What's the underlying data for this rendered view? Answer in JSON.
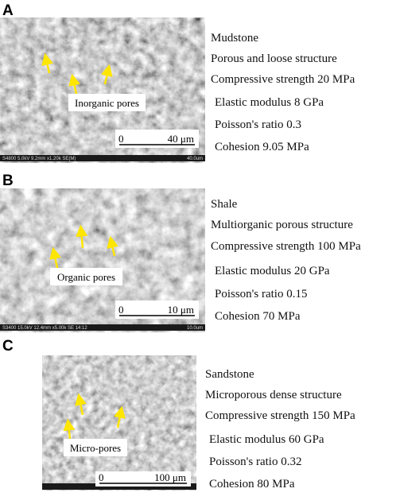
{
  "panels": [
    {
      "label": "A",
      "pore_label": "Inorganic pores",
      "scale_zero": "0",
      "scale_label": "40 μm",
      "footer_left": "S4800 5.0kV 9.2mm x1.20k SE(M)",
      "footer_right": "40.0um",
      "properties": [
        "Mudstone",
        "Porous and loose structure",
        "Compressive strength 20 MPa",
        "Elastic modulus 8 GPa",
        "Poisson's ratio 0.3",
        "Cohesion 9.05 MPa"
      ]
    },
    {
      "label": "B",
      "pore_label": "Organic pores",
      "scale_zero": "0",
      "scale_label": "10 μm",
      "footer_left": "S3400 15.0kV 12.4mm x5.00k SE 14:12",
      "footer_right": "10.0um",
      "properties": [
        "Shale",
        "Multiorganic porous structure",
        "Compressive strength 100 MPa",
        "Elastic modulus 20 GPa",
        "Poisson's ratio 0.15",
        "Cohesion 70 MPa"
      ]
    },
    {
      "label": "C",
      "pore_label": "Micro-pores",
      "scale_zero": "0",
      "scale_label": "100 μm",
      "properties": [
        "Sandstone",
        "Microporous dense structure",
        "Compressive strength 150 MPa",
        "Elastic modulus 60 GPa",
        "Poisson's ratio 0.32",
        "Cohesion 80 MPa"
      ]
    }
  ]
}
